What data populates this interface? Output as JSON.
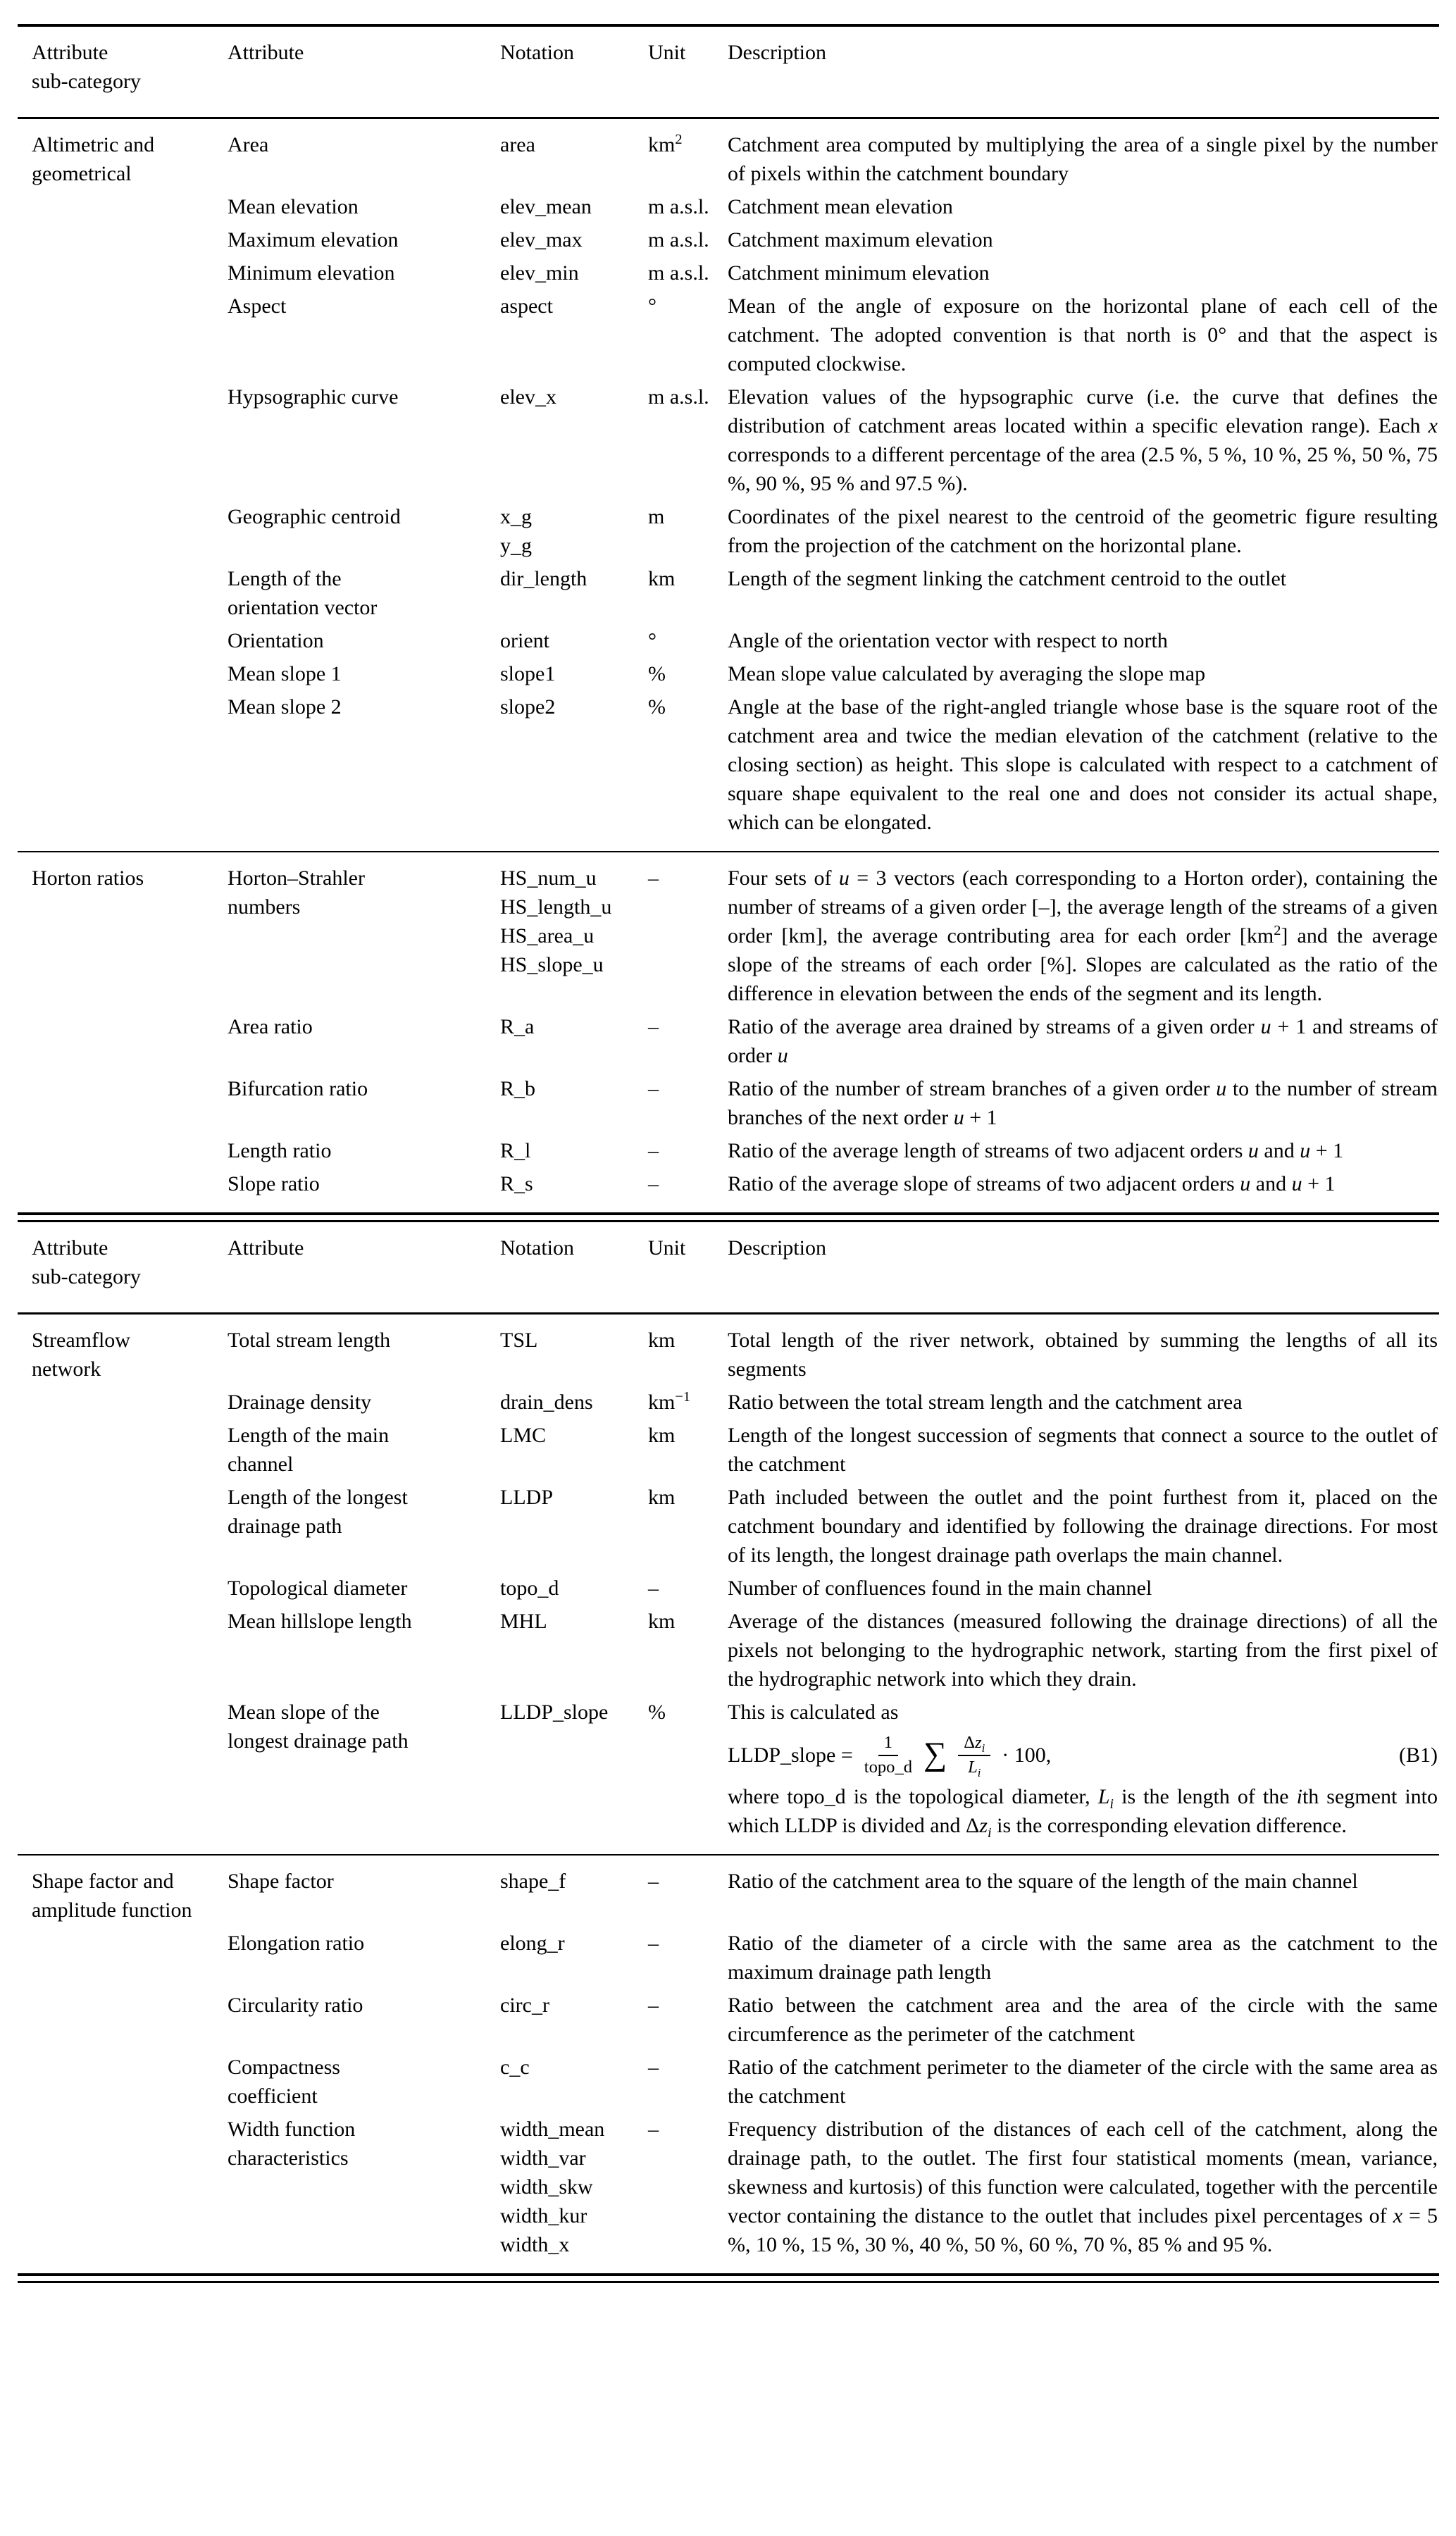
{
  "headers": {
    "subcategory": "Attribute\nsub-category",
    "attribute": "Attribute",
    "notation": "Notation",
    "unit": "Unit",
    "description": "Description"
  },
  "table1": {
    "sections": [
      {
        "subcategory": "Altimetric and\ngeometrical",
        "rows": [
          {
            "attribute": "Area",
            "notation": "area",
            "unit": "km^{2}",
            "description": "Catchment area computed by multiplying the area of a single pixel by the number of pixels within the catchment boundary"
          },
          {
            "attribute": "Mean elevation",
            "notation": "elev_mean",
            "unit": "m a.s.l.",
            "description": "Catchment mean elevation"
          },
          {
            "attribute": "Maximum elevation",
            "notation": "elev_max",
            "unit": "m a.s.l.",
            "description": "Catchment maximum elevation"
          },
          {
            "attribute": "Minimum elevation",
            "notation": "elev_min",
            "unit": "m a.s.l.",
            "description": "Catchment minimum elevation"
          },
          {
            "attribute": "Aspect",
            "notation": "aspect",
            "unit": "°",
            "description": "Mean of the angle of exposure on the horizontal plane of each cell of the catchment. The adopted convention is that north is 0° and that the aspect is computed clockwise."
          },
          {
            "attribute": "Hypsographic curve",
            "notation": "elev_x",
            "unit": "m a.s.l.",
            "description": "Elevation values of the hypsographic curve (i.e. the curve that defines the distribution of catchment areas located within a specific elevation range). Each *x* corresponds to a different percentage of the area (2.5 %, 5 %, 10 %, 25 %, 50 %, 75 %, 90 %, 95 % and 97.5 %)."
          },
          {
            "attribute": "Geographic centroid",
            "notation": "x_g\ny_g",
            "unit": "m",
            "description": "Coordinates of the pixel nearest to the centroid of the geometric figure resulting from the projection of the catchment on the horizontal plane."
          },
          {
            "attribute": "Length of the\norientation vector",
            "notation": "dir_length",
            "unit": "km",
            "description": "Length of the segment linking the catchment centroid to the outlet"
          },
          {
            "attribute": "Orientation",
            "notation": "orient",
            "unit": "°",
            "description": "Angle of the orientation vector with respect to north"
          },
          {
            "attribute": "Mean slope 1",
            "notation": "slope1",
            "unit": "%",
            "description": "Mean slope value calculated by averaging the slope map"
          },
          {
            "attribute": "Mean slope 2",
            "notation": "slope2",
            "unit": "%",
            "description": "Angle at the base of the right-angled triangle whose base is the square root of the catchment area and twice the median elevation of the catchment (relative to the closing section) as height. This slope is calculated with respect to a catchment of square shape equivalent to the real one and does not consider its actual shape, which can be elongated."
          }
        ]
      },
      {
        "subcategory": "Horton ratios",
        "rows": [
          {
            "attribute": "Horton–Strahler\nnumbers",
            "notation": "HS_num_u\nHS_length_u\nHS_area_u\nHS_slope_u",
            "unit": "–",
            "description": "Four sets of *u* = 3 vectors (each corresponding to a Horton order), containing the number of streams of a given order [–], the average length of the streams of a given order [km], the average contributing area for each order [km^{2}] and the average slope of the streams of each order [%]. Slopes are calculated as the ratio of the difference in elevation between the ends of the segment and its length."
          },
          {
            "attribute": "Area ratio",
            "notation": "R_a",
            "unit": "–",
            "description": "Ratio of the average area drained by streams of a given order *u* + 1 and streams of order *u*"
          },
          {
            "attribute": "Bifurcation ratio",
            "notation": "R_b",
            "unit": "–",
            "description": "Ratio of the number of stream branches of a given order *u* to the number of stream branches of the next order *u* + 1"
          },
          {
            "attribute": "Length ratio",
            "notation": "R_l",
            "unit": "–",
            "description": "Ratio of the average length of streams of two adjacent orders *u* and *u* + 1"
          },
          {
            "attribute": "Slope ratio",
            "notation": "R_s",
            "unit": "–",
            "description": "Ratio of the average slope of streams of two adjacent orders *u* and *u* + 1"
          }
        ]
      }
    ]
  },
  "table2": {
    "sections": [
      {
        "subcategory": "Streamflow\nnetwork",
        "rows": [
          {
            "attribute": "Total stream length",
            "notation": "TSL",
            "unit": "km",
            "description": "Total length of the river network, obtained by summing the lengths of all its segments"
          },
          {
            "attribute": "Drainage density",
            "notation": "drain_dens",
            "unit": "km^{−1}",
            "description": "Ratio between the total stream length and the catchment area"
          },
          {
            "attribute": "Length of the main\nchannel",
            "notation": "LMC",
            "unit": "km",
            "description": "Length of the longest succession of segments that connect a source to the outlet of the catchment"
          },
          {
            "attribute": "Length of the longest\ndrainage path",
            "notation": "LLDP",
            "unit": "km",
            "description": "Path included between the outlet and the point furthest from it, placed on the catchment boundary and identified by following the drainage directions. For most of its length, the longest drainage path overlaps the main channel."
          },
          {
            "attribute": "Topological diameter",
            "notation": "topo_d",
            "unit": "–",
            "description": "Number of confluences found in the main channel"
          },
          {
            "attribute": "Mean hillslope length",
            "notation": "MHL",
            "unit": "km",
            "description": "Average of the distances (measured following the drainage directions) of all the pixels not belonging to the hydrographic network, starting from the first pixel of the hydrographic network into which they drain."
          },
          {
            "attribute": "Mean slope of the\nlongest drainage path",
            "notation": "LLDP_slope",
            "unit": "%",
            "description_intro": "This is calculated as",
            "equation": {
              "lhs": "LLDP_slope =",
              "frac1_num": "1",
              "frac1_den": "topo_d",
              "sum": "∑",
              "frac2_num": "Δ*z*_{*i*}",
              "frac2_den": "*L*_{*i*}",
              "tail": "· 100,",
              "tag": "(B1)"
            },
            "description_after": "where topo_d is the topological diameter, *L*_{*i*} is the length of the *i*th segment into which LLDP is divided and Δ*z*_{*i*} is the corresponding elevation difference."
          }
        ]
      },
      {
        "subcategory": "Shape factor and\namplitude function",
        "rows": [
          {
            "attribute": "Shape factor",
            "notation": "shape_f",
            "unit": "–",
            "description": "Ratio of the catchment area to the square of the length of the main channel"
          },
          {
            "attribute": "Elongation ratio",
            "notation": "elong_r",
            "unit": "–",
            "description": "Ratio of the diameter of a circle with the same area as the catchment to the maximum drainage path length"
          },
          {
            "attribute": "Circularity ratio",
            "notation": "circ_r",
            "unit": "–",
            "description": "Ratio between the catchment area and the area of the circle with the same circumference as the perimeter of the catchment"
          },
          {
            "attribute": "Compactness\ncoefficient",
            "notation": "c_c",
            "unit": "–",
            "description": "Ratio of the catchment perimeter to the diameter of the circle with the same area as the catchment"
          },
          {
            "attribute": "Width function\ncharacteristics",
            "notation": "width_mean\nwidth_var\nwidth_skw\nwidth_kur\nwidth_x",
            "unit": "–",
            "description": "Frequency distribution of the distances of each cell of the catchment, along the drainage path, to the outlet. The first four statistical moments (mean, variance, skewness and kurtosis) of this function were calculated, together with the percentile vector containing the distance to the outlet that includes pixel percentages of *x* = 5 %, 10 %, 15 %, 30 %, 40 %, 50 %, 60 %, 70 %, 85 % and 95 %."
          }
        ]
      }
    ]
  }
}
